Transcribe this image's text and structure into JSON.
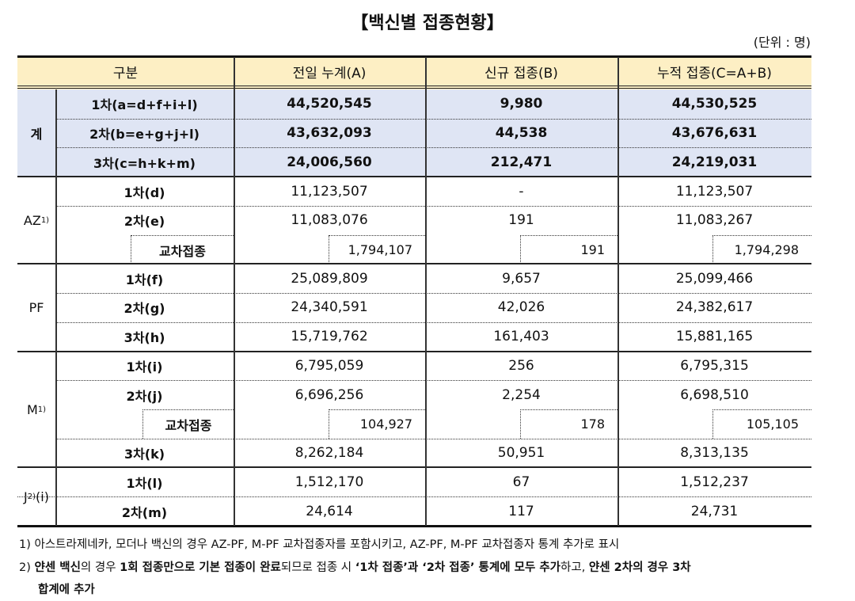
{
  "title": "【백신별 접종현황】",
  "unit": "(단위 : 명)",
  "table": {
    "header": [
      "구분",
      "전일 누계(A)",
      "신규 접종(B)",
      "누적 접종(C=A+B)"
    ],
    "groups": [
      {
        "label": "계",
        "rows": [
          [
            "1차(a=d+f+i+l)",
            "44,520,545",
            "9,980",
            "44,530,525"
          ],
          [
            "2차(b=e+g+j+l)",
            "43,632,093",
            "44,538",
            "43,676,631"
          ],
          [
            "3차(c=h+k+m)",
            "24,006,560",
            "212,471",
            "24,219,031"
          ]
        ]
      },
      {
        "label": "AZ",
        "sup": "1)",
        "rows": [
          [
            "1차(d)",
            "11,123,507",
            "-",
            "11,123,507"
          ],
          [
            "2차(e)",
            "11,083,076",
            "191",
            "11,083,267"
          ],
          [
            "교차접종",
            "1,794,107",
            "191",
            "1,794,298"
          ]
        ]
      },
      {
        "label": "PF",
        "rows": [
          [
            "1차(f)",
            "25,089,809",
            "9,657",
            "25,099,466"
          ],
          [
            "2차(g)",
            "24,340,591",
            "42,026",
            "24,382,617"
          ],
          [
            "3차(h)",
            "15,719,762",
            "161,403",
            "15,881,165"
          ]
        ]
      },
      {
        "label": "M",
        "sup": "1)",
        "rows": [
          [
            "1차(i)",
            "6,795,059",
            "256",
            "6,795,315"
          ],
          [
            "2차(j)",
            "6,696,256",
            "2,254",
            "6,698,510"
          ],
          [
            "교차접종",
            "104,927",
            "178",
            "105,105"
          ],
          [
            "3차(k)",
            "8,262,184",
            "50,951",
            "8,313,135"
          ]
        ]
      },
      {
        "label": "J",
        "sup": "2)",
        "suffix": "(i)",
        "rows": [
          [
            "1차(l)",
            "1,512,170",
            "67",
            "1,512,237"
          ],
          [
            "2차(m)",
            "24,614",
            "117",
            "24,731"
          ]
        ]
      }
    ]
  },
  "footnotes": [
    {
      "marker": "1)",
      "parts": [
        "아스트라제네카, 모더나 백신의 경우 AZ-PF, M-PF 교차접종자를 포함시키고, AZ-PF, M-PF 교차접종자 통계 추가로 표시"
      ]
    },
    {
      "marker": "2)",
      "parts": [
        "",
        "얀센 백신",
        "의 경우 ",
        "1회 접종만으로 기본 접종이 완료",
        "되므로 접종 시 ",
        "‘1차 접종’과 ‘2차 접종’ 통계에 모두 추가",
        "하고, ",
        "얀센 2차의 경우 3차",
        "",
        "합계에 추가"
      ]
    }
  ]
}
